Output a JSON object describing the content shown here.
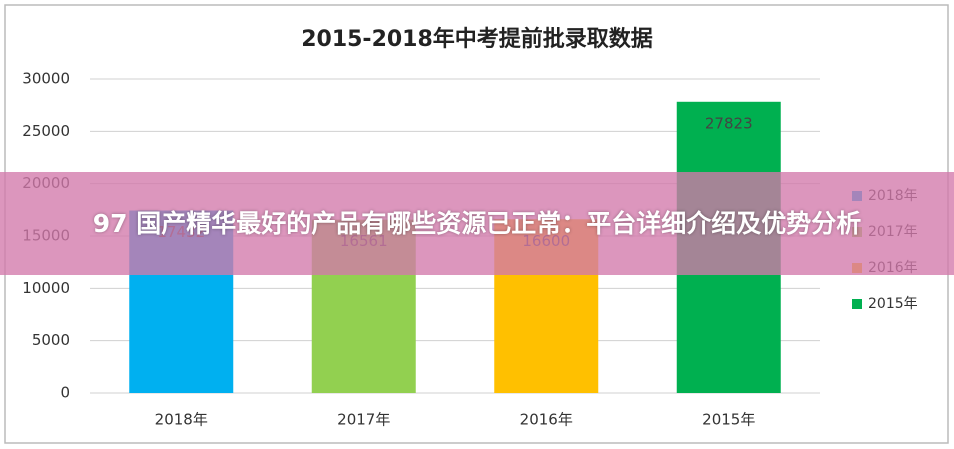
{
  "chart_data": {
    "type": "bar",
    "title": "2015-2018年中考提前批录取数据",
    "categories": [
      "2018年",
      "2017年",
      "2016年",
      "2015年"
    ],
    "values": [
      17432,
      16561,
      16600,
      27823
    ],
    "colors": [
      "#00b0f0",
      "#92d050",
      "#ffc000",
      "#00b050"
    ],
    "ylim": [
      0,
      30000
    ],
    "yticks": [
      0,
      5000,
      10000,
      15000,
      20000,
      25000,
      30000
    ],
    "grid": true,
    "legend": "right"
  },
  "banner": {
    "text": "97 国产精华最好的产品有哪些资源已正常：平台详细介绍及优势分析"
  }
}
